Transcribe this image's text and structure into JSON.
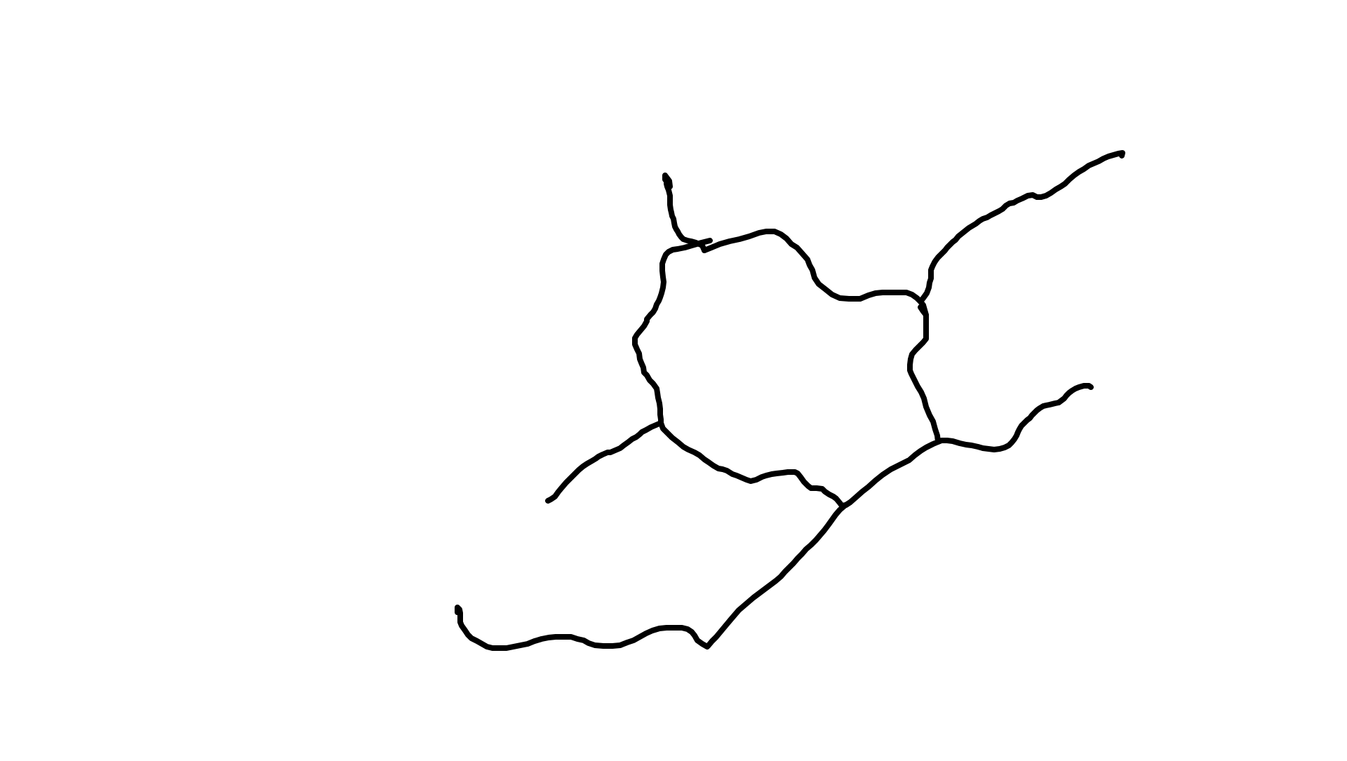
{
  "canvas": {
    "background_color": "#ffffff",
    "stroke_color": "#000000"
  },
  "drawing": {
    "description_free": true,
    "stroke_count": 8
  }
}
